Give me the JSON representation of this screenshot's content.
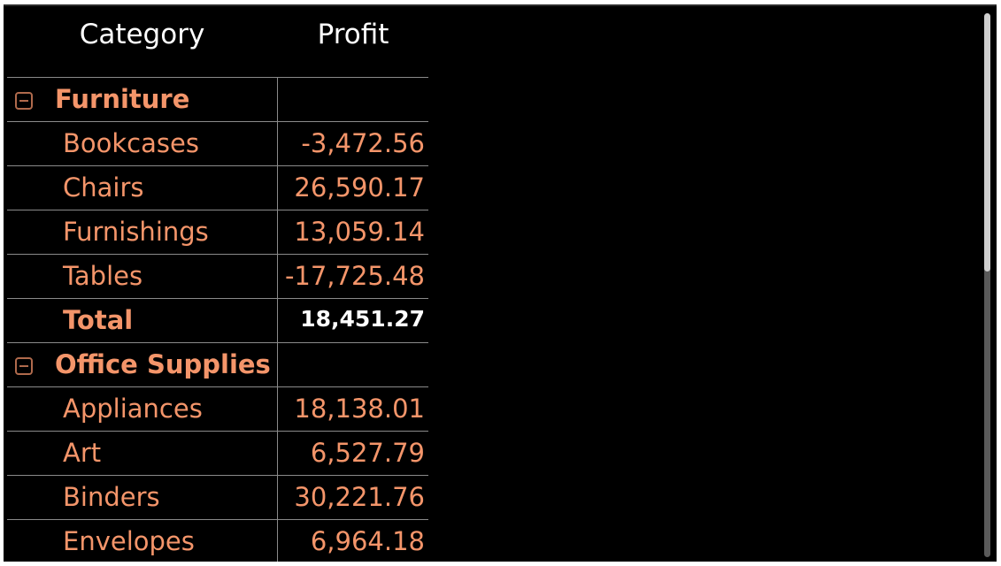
{
  "headers": {
    "category": "Category",
    "profit": "Profit"
  },
  "groups": [
    {
      "name": "Furniture",
      "items": [
        {
          "label": "Bookcases",
          "value": "-3,472.56"
        },
        {
          "label": "Chairs",
          "value": "26,590.17"
        },
        {
          "label": "Furnishings",
          "value": "13,059.14"
        },
        {
          "label": "Tables",
          "value": "-17,725.48"
        }
      ],
      "total_label": "Total",
      "total_value": "18,451.27"
    },
    {
      "name": "Office Supplies",
      "items": [
        {
          "label": "Appliances",
          "value": "18,138.01"
        },
        {
          "label": "Art",
          "value": "6,527.79"
        },
        {
          "label": "Binders",
          "value": "30,221.76"
        },
        {
          "label": "Envelopes",
          "value": "6,964.18"
        }
      ]
    }
  ],
  "colors": {
    "background": "#000000",
    "text_accent": "#f4956a",
    "header_text": "#ffffff",
    "grid_line": "#8a8a8a",
    "icon": "#b06a4c"
  },
  "icons": {
    "collapse": "minus-square-icon"
  }
}
